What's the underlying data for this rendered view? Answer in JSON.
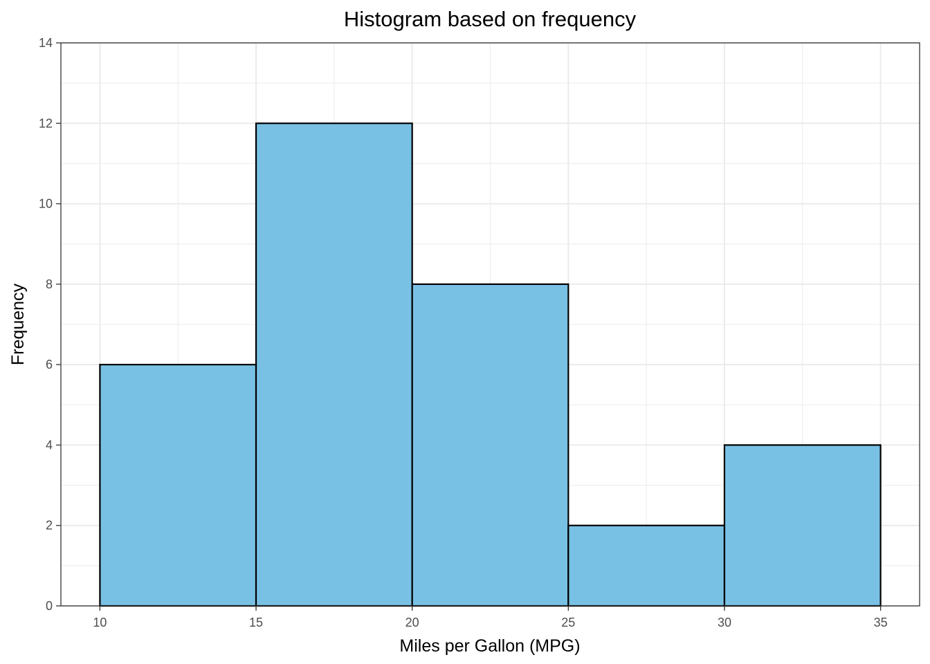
{
  "chart_data": {
    "type": "bar",
    "subtype": "histogram",
    "title": "Histogram based on frequency",
    "xlabel": "Miles per Gallon (MPG)",
    "ylabel": "Frequency",
    "bins": [
      {
        "start": 10,
        "end": 15,
        "count": 6
      },
      {
        "start": 15,
        "end": 20,
        "count": 12
      },
      {
        "start": 20,
        "end": 25,
        "count": 8
      },
      {
        "start": 25,
        "end": 30,
        "count": 2
      },
      {
        "start": 30,
        "end": 35,
        "count": 4
      }
    ],
    "xlim": [
      8.75,
      36.25
    ],
    "ylim": [
      0,
      14
    ],
    "x_ticks": [
      "10",
      "15",
      "20",
      "25",
      "30",
      "35"
    ],
    "y_ticks": [
      "0",
      "2",
      "4",
      "6",
      "8",
      "10",
      "12",
      "14"
    ],
    "bar_fill": "#79c1e4",
    "bar_stroke": "#000000",
    "grid": true,
    "legend": "none"
  }
}
